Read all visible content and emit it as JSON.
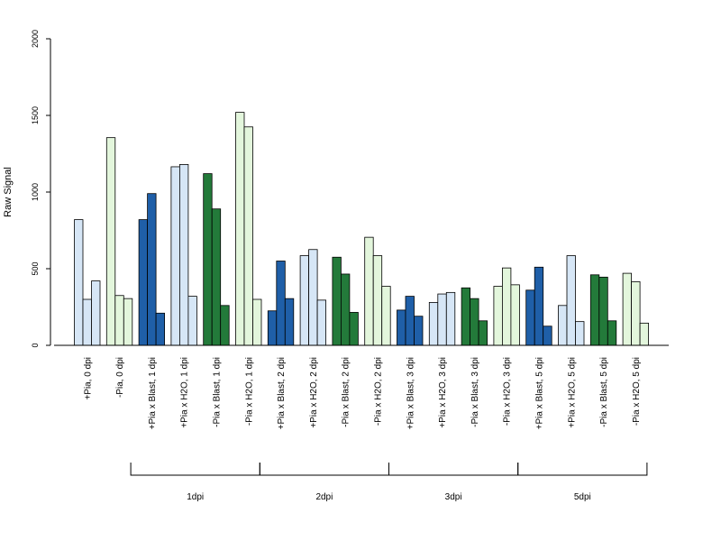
{
  "chart_data": {
    "type": "bar",
    "ylabel": "Raw Signal",
    "xlabel": "",
    "ylim": [
      0,
      2000
    ],
    "yticks": [
      0,
      500,
      1000,
      1500,
      2000
    ],
    "grid": false,
    "colors": {
      "pia_plus_blast": "#1f5fa8",
      "pia_plus_mock": "#d6e6f6",
      "pia_minus_blast": "#237a3a",
      "pia_minus_mock": "#e3f6dc"
    },
    "categories": [
      "+Pia, 0 dpi",
      "-Pia, 0 dpi",
      "+Pia x Blast, 1 dpi",
      "+Pia x H2O, 1 dpi",
      "-Pia x Blast, 1 dpi",
      "-Pia x H2O, 1 dpi",
      "+Pia x Blast, 2 dpi",
      "+Pia x H2O, 2 dpi",
      "-Pia x Blast, 2 dpi",
      "-Pia x H2O, 2 dpi",
      "+Pia x Blast, 3 dpi",
      "+Pia x H2O, 3 dpi",
      "-Pia x Blast, 3 dpi",
      "-Pia x H2O, 3 dpi",
      "+Pia x Blast, 5 dpi",
      "+Pia x H2O, 5 dpi",
      "-Pia x Blast, 5 dpi",
      "-Pia x H2O, 5 dpi"
    ],
    "category_colors": [
      "pia_plus_mock",
      "pia_minus_mock",
      "pia_plus_blast",
      "pia_plus_mock",
      "pia_minus_blast",
      "pia_minus_mock",
      "pia_plus_blast",
      "pia_plus_mock",
      "pia_minus_blast",
      "pia_minus_mock",
      "pia_plus_blast",
      "pia_plus_mock",
      "pia_minus_blast",
      "pia_minus_mock",
      "pia_plus_blast",
      "pia_plus_mock",
      "pia_minus_blast",
      "pia_minus_mock"
    ],
    "replicates": [
      [
        820,
        300,
        420
      ],
      [
        1355,
        325,
        305
      ],
      [
        820,
        990,
        210
      ],
      [
        1165,
        1180,
        320
      ],
      [
        1120,
        890,
        260
      ],
      [
        1520,
        1425,
        300
      ],
      [
        225,
        550,
        305
      ],
      [
        585,
        625,
        295
      ],
      [
        575,
        465,
        215
      ],
      [
        705,
        585,
        385
      ],
      [
        230,
        320,
        190
      ],
      [
        280,
        335,
        345
      ],
      [
        375,
        305,
        160
      ],
      [
        385,
        505,
        395
      ],
      [
        360,
        510,
        125
      ],
      [
        260,
        585,
        155
      ],
      [
        460,
        445,
        160
      ],
      [
        470,
        415,
        145
      ]
    ],
    "groups": [
      {
        "label": "1dpi",
        "from": 2,
        "to": 5
      },
      {
        "label": "2dpi",
        "from": 6,
        "to": 9
      },
      {
        "label": "3dpi",
        "from": 10,
        "to": 13
      },
      {
        "label": "5dpi",
        "from": 14,
        "to": 17
      }
    ]
  }
}
